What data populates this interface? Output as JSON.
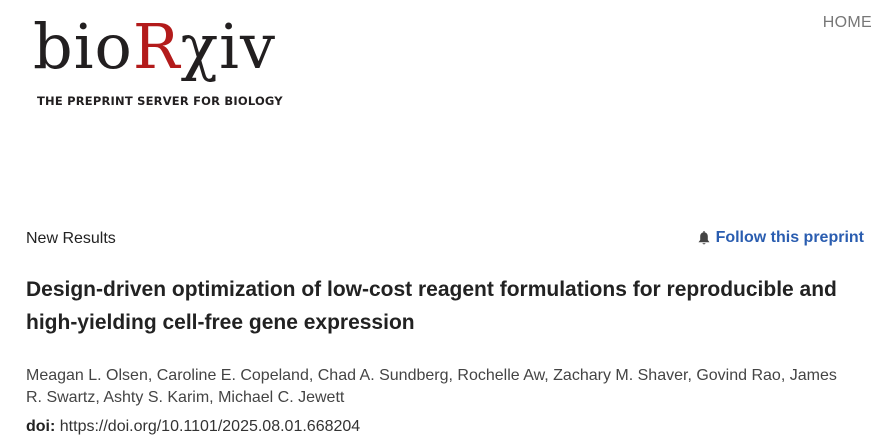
{
  "logo": {
    "word_prefix": "bio",
    "word_accent": "R",
    "word_suffix": "χiv",
    "tagline": "THE PREPRINT SERVER FOR BIOLOGY"
  },
  "nav": {
    "home_label": "HOME"
  },
  "article": {
    "type": "New Results",
    "follow_label": "Follow this preprint",
    "title": "Design-driven optimization of low-cost reagent formulations for reproducible and high-yielding cell-free gene expression",
    "authors": [
      "Meagan L. Olsen",
      "Caroline E. Copeland",
      "Chad A. Sundberg",
      "Rochelle Aw",
      "Zachary M. Shaver",
      "Govind Rao",
      "James R. Swartz",
      "Ashty S. Karim",
      "Michael C. Jewett"
    ],
    "doi_label": "doi:",
    "doi_value": "https://doi.org/10.1101/2025.08.01.668204"
  },
  "icons": {
    "follow": "bell-icon"
  },
  "colors": {
    "logo_accent": "#b31b1b",
    "link": "#2a5db0",
    "nav": "#777777"
  }
}
